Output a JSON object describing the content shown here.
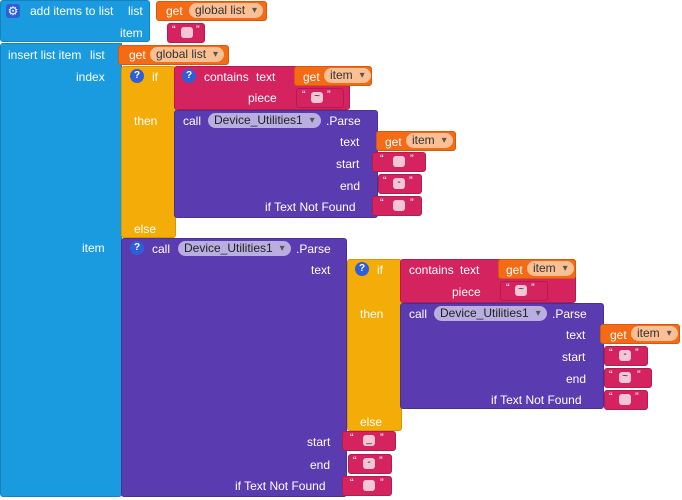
{
  "add_items": {
    "label": "add items to list",
    "list_label": "list",
    "get1": "get",
    "global_list": "global list",
    "item_label": "item"
  },
  "insert": {
    "label": "insert list item",
    "list_label": "list",
    "get_label": "get",
    "global_list": "global list",
    "index_label": "index",
    "item_label": "item"
  },
  "if_block": {
    "if_label": "if",
    "then_label": "then",
    "else_label": "else",
    "contains_label": "contains",
    "text_label": "text",
    "piece_label": "piece",
    "get_label": "get",
    "item_var": "item",
    "tilde": "~"
  },
  "parse": {
    "call_label": "call",
    "component": "Device_Utilities1",
    "method": ".Parse",
    "text_label": "text",
    "start_label": "start",
    "end_label": "end",
    "not_found_label": "if Text Not Found",
    "dash": "-",
    "underscore": "_",
    "tilde": "~"
  },
  "quote_open": "“",
  "quote_close": "”",
  "icons": {
    "gear": "gear-icon",
    "question": "question-mark-icon"
  }
}
